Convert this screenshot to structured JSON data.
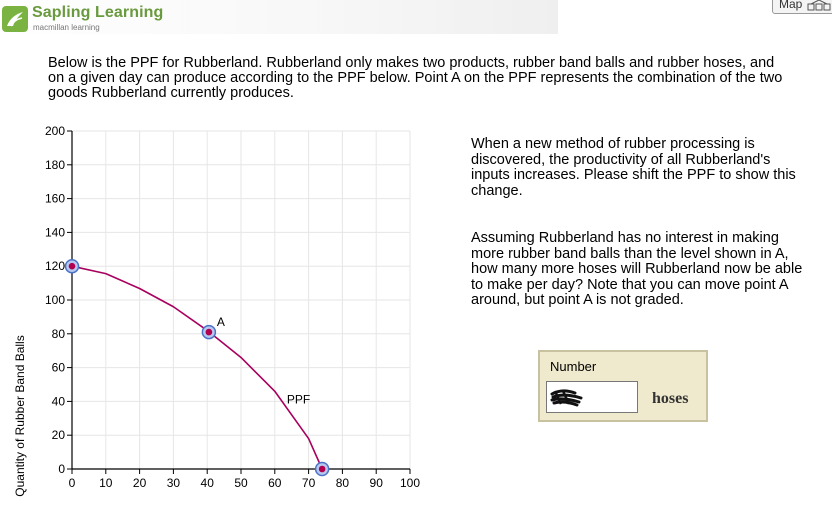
{
  "header": {
    "brand": "Sapling Learning",
    "brand_sub": "macmillan learning",
    "map_label": "Map"
  },
  "intro_text": "Below is the PPF for Rubberland. Rubberland only makes two products, rubber band balls and rubber hoses, and on a given day can produce according to the PPF below. Point A on the PPF represents the combination of the two goods Rubberland currently produces.",
  "question_1": "When a new method of rubber processing is discovered, the productivity of all Rubberland's inputs increases. Please shift the PPF to show this change.",
  "question_2": "Assuming Rubberland has no interest in making more rubber band balls than the level shown in A, how many more hoses will Rubberland now be able to make per day? Note that you can move point A around, but point A is not graded.",
  "answer": {
    "label": "Number",
    "value": "",
    "unit": "hoses"
  },
  "chart_data": {
    "type": "line",
    "ylabel": "Quantity of Rubber Band Balls",
    "xlabel": "",
    "xlim": [
      0,
      100
    ],
    "ylim": [
      0,
      200
    ],
    "x_ticks": [
      "0",
      "10",
      "20",
      "30",
      "40",
      "50",
      "60",
      "70",
      "80",
      "90",
      "100"
    ],
    "y_ticks": [
      "0",
      "20",
      "40",
      "60",
      "80",
      "100",
      "120",
      "140",
      "160",
      "180",
      "200"
    ],
    "grid": true,
    "series": [
      {
        "name": "PPF",
        "color": "#a8005e",
        "x": [
          0,
          10,
          20,
          30,
          40,
          50,
          60,
          70,
          74
        ],
        "y": [
          120,
          115.6,
          106.8,
          96,
          82,
          66,
          46,
          18,
          0
        ]
      }
    ],
    "points": [
      {
        "label": "",
        "x": 0,
        "y": 120
      },
      {
        "label": "A",
        "x": 40.5,
        "y": 81
      },
      {
        "label": "",
        "x": 74,
        "y": 0
      }
    ],
    "curve_label": "PPF"
  }
}
